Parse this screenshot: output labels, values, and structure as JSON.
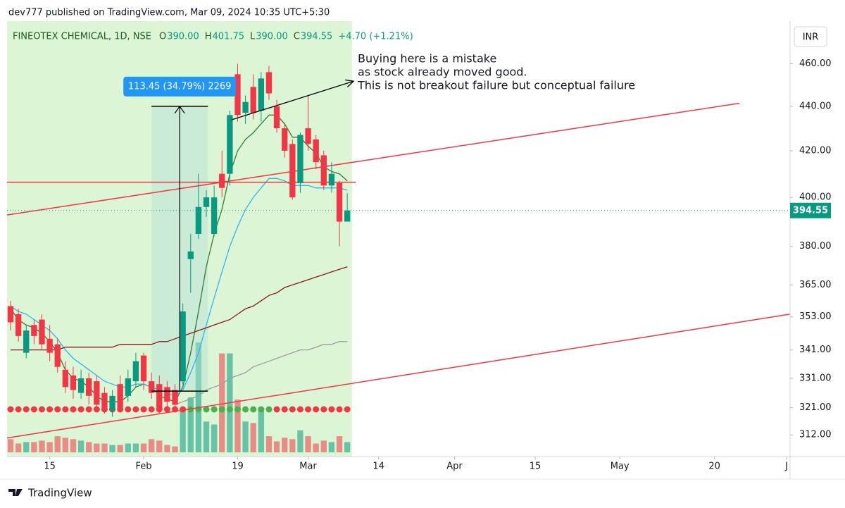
{
  "header": {
    "published": "dev777 published on TradingView.com, Mar 09, 2024 10:35 UTC+5:30",
    "symbol": "FINEOTEX CHEMICAL, 1D, NSE",
    "ohlc": [
      {
        "key": "O",
        "value": "390.00"
      },
      {
        "key": "H",
        "value": "401.75"
      },
      {
        "key": "L",
        "value": "390.00"
      },
      {
        "key": "C",
        "value": "394.55"
      }
    ],
    "change": "+4.70 (+1.21%)",
    "currency": "INR"
  },
  "chart_data": {
    "type": "candlestick",
    "x": [
      0,
      1,
      2,
      3,
      4,
      5,
      6,
      7,
      8,
      9,
      10,
      11,
      12,
      13,
      14,
      15,
      16,
      17,
      18,
      19,
      20,
      21,
      22,
      23,
      24,
      25,
      26,
      27,
      28,
      29,
      30,
      31,
      32,
      33,
      34,
      35,
      36,
      37,
      38,
      39,
      40,
      41,
      42,
      43
    ],
    "open": [
      357,
      354,
      340,
      350,
      352,
      345,
      343,
      334,
      332,
      326,
      331,
      330,
      326,
      320,
      329,
      325,
      330,
      339,
      330,
      329,
      328,
      327,
      330,
      375,
      385,
      396,
      385,
      410,
      410,
      455,
      437,
      449,
      438,
      456,
      440,
      430,
      423,
      406,
      430,
      425,
      418,
      405,
      406,
      390
    ],
    "high": [
      359,
      356,
      350,
      352,
      354,
      350,
      345,
      337,
      335,
      334,
      333,
      332,
      328,
      327,
      332,
      334,
      340,
      340,
      333,
      332,
      330,
      329,
      358,
      385,
      410,
      403,
      405,
      420,
      438,
      460,
      445,
      455,
      456,
      459,
      443,
      432,
      425,
      428,
      445,
      427,
      420,
      415,
      407,
      401.75
    ],
    "low": [
      348,
      344,
      338,
      343,
      341,
      337,
      333,
      326,
      324,
      324,
      322,
      320,
      319,
      318,
      320,
      323,
      328,
      327,
      324,
      319,
      321,
      320,
      329,
      362,
      383,
      392,
      384,
      400,
      405,
      433,
      432,
      434,
      433,
      443,
      428,
      417,
      399,
      402,
      420,
      412,
      403,
      402,
      380,
      390
    ],
    "close": [
      351,
      346,
      348,
      346,
      343,
      340,
      335,
      328,
      327,
      331,
      325,
      322,
      321,
      325,
      321,
      331,
      337,
      330,
      326,
      320,
      323,
      322,
      355,
      378,
      396,
      400,
      400,
      404,
      436,
      436,
      442,
      437,
      453,
      446,
      430,
      420,
      400,
      427,
      423,
      415,
      405,
      410,
      390,
      394.55
    ],
    "volume": [
      18,
      12,
      14,
      14,
      16,
      14,
      22,
      20,
      18,
      16,
      14,
      12,
      12,
      10,
      10,
      12,
      12,
      12,
      18,
      16,
      10,
      8,
      60,
      75,
      150,
      42,
      38,
      135,
      135,
      72,
      42,
      40,
      57,
      22,
      15,
      20,
      18,
      30,
      22,
      12,
      16,
      14,
      22,
      14
    ],
    "up_color": "#089981",
    "down_color": "#f23645",
    "xlim": [
      -0.45,
      99.55
    ],
    "ylim": [
      305,
      481
    ],
    "log_scale": true,
    "xticks": [
      {
        "value": 5,
        "label": "15"
      },
      {
        "value": 17,
        "label": "Feb"
      },
      {
        "value": 29,
        "label": "19"
      },
      {
        "value": 38,
        "label": "Mar"
      },
      {
        "value": 47,
        "label": "14"
      },
      {
        "value": 56.7,
        "label": "Apr"
      },
      {
        "value": 67,
        "label": "15"
      },
      {
        "value": 77.8,
        "label": "May"
      },
      {
        "value": 89.9,
        "label": "20"
      },
      {
        "value": 99.1,
        "label": "J"
      }
    ],
    "yticks": [
      {
        "value": 460,
        "label": "460.00"
      },
      {
        "value": 440,
        "label": "440.00"
      },
      {
        "value": 420,
        "label": "420.00"
      },
      {
        "value": 400,
        "label": "400.00"
      },
      {
        "value": 380,
        "label": "380.00"
      },
      {
        "value": 365,
        "label": "365.00"
      },
      {
        "value": 353,
        "label": "353.00"
      },
      {
        "value": 341,
        "label": "341.00"
      },
      {
        "value": 331,
        "label": "331.00"
      },
      {
        "value": 321,
        "label": "321.00"
      },
      {
        "value": 312,
        "label": "312.00"
      }
    ],
    "last_price": {
      "value": 394.55,
      "label": "394.55"
    },
    "lines": [
      {
        "color": "#2e7d32",
        "values": [
          356,
          352,
          350,
          349,
          347,
          344,
          340,
          334,
          331,
          330,
          328,
          325,
          323,
          323,
          323,
          325,
          328,
          329,
          328,
          325,
          324,
          323,
          328,
          340,
          355,
          372,
          385,
          395,
          410,
          420,
          425,
          428,
          432,
          436,
          436,
          432,
          426,
          426,
          422,
          419,
          413,
          411,
          410,
          407
        ]
      },
      {
        "color": "#29b6f6",
        "values": [
          357,
          355,
          354,
          352,
          350,
          348,
          345,
          341,
          338,
          336,
          334,
          332,
          330,
          329,
          328,
          328,
          329,
          329,
          328,
          327,
          326,
          325,
          327,
          333,
          340,
          350,
          360,
          370,
          380,
          388,
          395,
          400,
          404,
          408,
          408,
          407,
          405,
          405,
          405,
          404,
          404,
          404,
          404,
          403
        ]
      },
      {
        "color": "#8b1a1a",
        "values": [
          341,
          341,
          341,
          341,
          341,
          341,
          341,
          342,
          342,
          342,
          342,
          342,
          342,
          342,
          343,
          343,
          343,
          343,
          343,
          344,
          344,
          345,
          346,
          347,
          348,
          349,
          350,
          351,
          352,
          354,
          356,
          357,
          359,
          361,
          362,
          364,
          365,
          366,
          367,
          368,
          369,
          370,
          371,
          372
        ]
      },
      {
        "color": "#9e9e9e",
        "values": [
          null,
          null,
          null,
          null,
          null,
          null,
          null,
          null,
          null,
          null,
          null,
          null,
          null,
          null,
          null,
          null,
          null,
          null,
          null,
          null,
          null,
          322,
          323,
          324,
          325,
          327,
          328,
          329,
          331,
          332,
          333,
          335,
          336,
          337,
          338,
          339,
          340,
          341,
          341,
          342,
          343,
          343,
          344,
          344
        ]
      }
    ],
    "dot_colors": [
      "#f23645",
      "#f23645",
      "#f23645",
      "#f23645",
      "#f23645",
      "#f23645",
      "#f23645",
      "#f23645",
      "#f23645",
      "#f23645",
      "#f23645",
      "#f23645",
      "#f23645",
      "#f23645",
      "#f23645",
      "#f23645",
      "#f23645",
      "#f23645",
      "#f23645",
      "#f23645",
      "#f23645",
      "#f23645",
      "#f23645",
      "#4caf50",
      "#4caf50",
      "#4caf50",
      "#4caf50",
      "#4caf50",
      "#4caf50",
      "#4caf50",
      "#4caf50",
      "#4caf50",
      "#4caf50",
      "#4caf50",
      "#f23645",
      "#f23645",
      "#f23645",
      "#f23645",
      "#f23645",
      "#f23645",
      "#f23645",
      "#f23645",
      "#f23645",
      "#f23645"
    ],
    "highlight": {
      "color": "#dcf5d4",
      "x": [
        -0.45,
        43.6
      ]
    },
    "trendlines": [
      {
        "color": "#f23645",
        "x": [
          -0.45,
          93.1
        ],
        "y": [
          392.7,
          441.4
        ]
      },
      {
        "color": "#f23645",
        "x": [
          -0.45,
          44.1
        ],
        "y": [
          406.4,
          406.4
        ]
      },
      {
        "color": "#f23645",
        "x": [
          -0.45,
          99.55
        ],
        "y": [
          311,
          354
        ]
      }
    ],
    "measure": {
      "label": "113.45 (34.79%) 2269",
      "x": [
        18,
        25.2
      ],
      "y": [
        326.6,
        440
      ]
    },
    "annotation": {
      "lines": [
        "Buying here is a mistake",
        "as stock already moved good.",
        "This is not breakout failure but conceptual failure"
      ],
      "x": [
        28.2,
        43.8
      ],
      "y": [
        433.8,
        451.7
      ]
    }
  },
  "footer": {
    "brand": "TradingView"
  }
}
